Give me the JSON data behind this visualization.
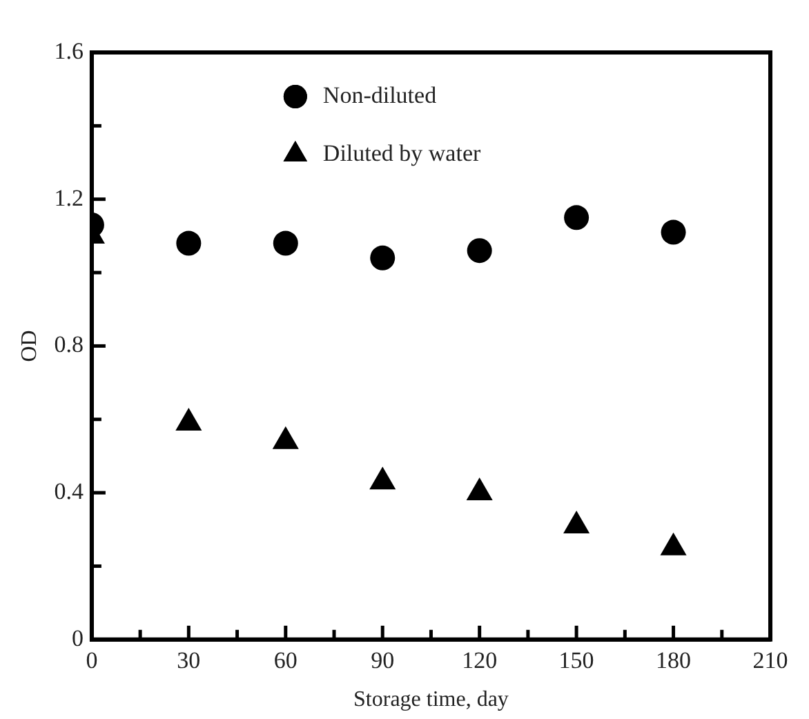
{
  "chart_data": {
    "type": "scatter",
    "xlabel": "Storage time, day",
    "ylabel": "OD",
    "x": [
      0,
      30,
      60,
      90,
      120,
      150,
      180
    ],
    "series": [
      {
        "name": "Non-diluted",
        "color": "#000000",
        "marker": "circle",
        "values": [
          1.13,
          1.08,
          1.08,
          1.04,
          1.06,
          1.15,
          1.11
        ]
      },
      {
        "name": "Diluted by water",
        "color": "#000000",
        "marker": "triangle",
        "values": [
          1.1,
          0.59,
          0.54,
          0.43,
          0.4,
          0.31,
          0.25
        ]
      }
    ],
    "xlim": [
      0,
      210
    ],
    "xticks": [
      0,
      {
        "value": 15,
        "label": null
      },
      30,
      {
        "value": 45,
        "label": null
      },
      60,
      {
        "value": 75,
        "label": null
      },
      90,
      {
        "value": 105,
        "label": null
      },
      120,
      {
        "value": 135,
        "label": null
      },
      150,
      {
        "value": 165,
        "label": null
      },
      180,
      {
        "value": 195,
        "label": null
      },
      210
    ],
    "ylim": [
      0,
      1.6
    ],
    "yticks": [
      0,
      {
        "value": 0.2,
        "label": null
      },
      0.4,
      {
        "value": 0.6,
        "label": null
      },
      0.8,
      {
        "value": 1.0,
        "label": null
      },
      1.2,
      {
        "value": 1.4,
        "label": null
      },
      1.6
    ],
    "grid": false,
    "legend": "top"
  }
}
